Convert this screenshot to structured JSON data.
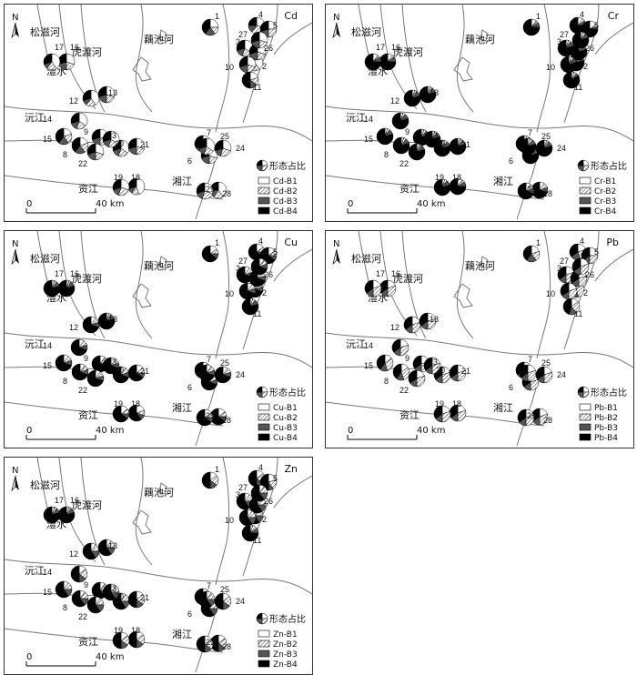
{
  "labels": {
    "songzi": "松滋河",
    "hudu": "虎渡河",
    "ouchi": "藕池河",
    "lishui": "澧水",
    "yuanjiang": "沅江",
    "zijiang": "资江",
    "xiangjiang": "湘江",
    "north": "N",
    "scale_zero": "0",
    "scale_dist": "40 km",
    "legend_title": "形态占比"
  },
  "colors": {
    "B1": "#ffffff",
    "B2": "hatched",
    "B3": "#555555",
    "B4": "#000000",
    "river": "#777777",
    "border": "#333333"
  },
  "site_ids": [
    "1",
    "2",
    "3",
    "4",
    "5",
    "6",
    "7",
    "8",
    "9",
    "10",
    "11",
    "12",
    "13",
    "14",
    "15",
    "16",
    "17",
    "18",
    "19",
    "20",
    "21",
    "22",
    "23",
    "24",
    "25",
    "26",
    "27",
    "28",
    "29"
  ],
  "panels": [
    {
      "metal": "Cd",
      "legend": [
        "Cd-B1",
        "Cd-B2",
        "Cd-B3",
        "Cd-B4"
      ],
      "fractions": {
        "1": [
          0.25,
          0.15,
          0.2,
          0.4
        ],
        "2": [
          0.4,
          0.2,
          0.15,
          0.25
        ],
        "3": [
          0.35,
          0.2,
          0.15,
          0.3
        ],
        "4": [
          0.3,
          0.3,
          0.15,
          0.25
        ],
        "5": [
          0.25,
          0.25,
          0.2,
          0.3
        ],
        "6": [
          0.3,
          0.2,
          0.2,
          0.3
        ],
        "7": [
          0.35,
          0.2,
          0.1,
          0.35
        ],
        "8": [
          0.2,
          0.2,
          0.2,
          0.4
        ],
        "9": [
          0.3,
          0.2,
          0.2,
          0.3
        ],
        "10": [
          0.3,
          0.2,
          0.2,
          0.3
        ],
        "11": [
          0.2,
          0.15,
          0.15,
          0.5
        ],
        "12": [
          0.4,
          0.2,
          0.1,
          0.3
        ],
        "13": [
          0.3,
          0.2,
          0.2,
          0.3
        ],
        "14": [
          0.35,
          0.2,
          0.15,
          0.3
        ],
        "15": [
          0.2,
          0.2,
          0.2,
          0.4
        ],
        "16": [
          0.3,
          0.2,
          0.2,
          0.3
        ],
        "17": [
          0.4,
          0.2,
          0.1,
          0.3
        ],
        "18": [
          0.45,
          0.15,
          0.1,
          0.3
        ],
        "19": [
          0.3,
          0.25,
          0.15,
          0.3
        ],
        "20": [
          0.35,
          0.2,
          0.15,
          0.3
        ],
        "21": [
          0.3,
          0.2,
          0.2,
          0.3
        ],
        "22": [
          0.3,
          0.2,
          0.2,
          0.3
        ],
        "23": [
          0.35,
          0.2,
          0.15,
          0.3
        ],
        "24": [
          0.3,
          0.25,
          0.15,
          0.3
        ],
        "25": [
          0.35,
          0.2,
          0.15,
          0.3
        ],
        "26": [
          0.3,
          0.2,
          0.2,
          0.3
        ],
        "27": [
          0.3,
          0.2,
          0.2,
          0.3
        ],
        "28": [
          0.4,
          0.2,
          0.15,
          0.25
        ],
        "29": [
          0.3,
          0.25,
          0.15,
          0.3
        ]
      }
    },
    {
      "metal": "Cr",
      "legend": [
        "Cr-B1",
        "Cr-B2",
        "Cr-B3",
        "Cr-B4"
      ],
      "fractions": {
        "1": [
          0.1,
          0.05,
          0.1,
          0.75
        ],
        "2": [
          0.05,
          0.05,
          0.1,
          0.8
        ],
        "3": [
          0.05,
          0.05,
          0.1,
          0.8
        ],
        "4": [
          0.1,
          0.05,
          0.1,
          0.75
        ],
        "5": [
          0.15,
          0.05,
          0.05,
          0.75
        ],
        "6": [
          0.05,
          0.05,
          0.1,
          0.8
        ],
        "7": [
          0.05,
          0.05,
          0.1,
          0.8
        ],
        "8": [
          0.05,
          0.05,
          0.1,
          0.8
        ],
        "9": [
          0.05,
          0.05,
          0.1,
          0.8
        ],
        "10": [
          0.05,
          0.05,
          0.1,
          0.8
        ],
        "11": [
          0.05,
          0.05,
          0.05,
          0.85
        ],
        "12": [
          0.05,
          0.05,
          0.1,
          0.8
        ],
        "13": [
          0.05,
          0.05,
          0.1,
          0.8
        ],
        "14": [
          0.05,
          0.05,
          0.1,
          0.8
        ],
        "15": [
          0.05,
          0.05,
          0.1,
          0.8
        ],
        "16": [
          0.1,
          0.05,
          0.1,
          0.75
        ],
        "17": [
          0.1,
          0.05,
          0.1,
          0.75
        ],
        "18": [
          0.1,
          0.05,
          0.1,
          0.75
        ],
        "19": [
          0.05,
          0.05,
          0.1,
          0.8
        ],
        "20": [
          0.05,
          0.05,
          0.1,
          0.8
        ],
        "21": [
          0.05,
          0.05,
          0.1,
          0.8
        ],
        "22": [
          0.05,
          0.05,
          0.1,
          0.8
        ],
        "23": [
          0.05,
          0.05,
          0.1,
          0.8
        ],
        "24": [
          0.05,
          0.05,
          0.1,
          0.8
        ],
        "25": [
          0.05,
          0.05,
          0.1,
          0.8
        ],
        "26": [
          0.05,
          0.05,
          0.1,
          0.8
        ],
        "27": [
          0.05,
          0.05,
          0.1,
          0.8
        ],
        "28": [
          0.1,
          0.1,
          0.1,
          0.7
        ],
        "29": [
          0.1,
          0.1,
          0.1,
          0.7
        ]
      }
    },
    {
      "metal": "Cu",
      "legend": [
        "Cu-B1",
        "Cu-B2",
        "Cu-B3",
        "Cu-B4"
      ],
      "fractions": {
        "1": [
          0.15,
          0.1,
          0.1,
          0.65
        ],
        "2": [
          0.1,
          0.1,
          0.1,
          0.7
        ],
        "3": [
          0.1,
          0.1,
          0.1,
          0.7
        ],
        "4": [
          0.15,
          0.1,
          0.1,
          0.65
        ],
        "5": [
          0.15,
          0.1,
          0.1,
          0.65
        ],
        "6": [
          0.1,
          0.1,
          0.1,
          0.7
        ],
        "7": [
          0.1,
          0.1,
          0.1,
          0.7
        ],
        "8": [
          0.1,
          0.1,
          0.1,
          0.7
        ],
        "9": [
          0.1,
          0.1,
          0.1,
          0.7
        ],
        "10": [
          0.1,
          0.1,
          0.1,
          0.7
        ],
        "11": [
          0.05,
          0.05,
          0.1,
          0.8
        ],
        "12": [
          0.1,
          0.1,
          0.1,
          0.7
        ],
        "13": [
          0.05,
          0.05,
          0.1,
          0.8
        ],
        "14": [
          0.1,
          0.1,
          0.1,
          0.7
        ],
        "15": [
          0.1,
          0.1,
          0.1,
          0.7
        ],
        "16": [
          0.05,
          0.05,
          0.1,
          0.8
        ],
        "17": [
          0.05,
          0.05,
          0.1,
          0.8
        ],
        "18": [
          0.2,
          0.1,
          0.1,
          0.6
        ],
        "19": [
          0.15,
          0.1,
          0.1,
          0.65
        ],
        "20": [
          0.1,
          0.1,
          0.1,
          0.7
        ],
        "21": [
          0.15,
          0.1,
          0.1,
          0.65
        ],
        "22": [
          0.1,
          0.1,
          0.1,
          0.7
        ],
        "23": [
          0.1,
          0.1,
          0.1,
          0.7
        ],
        "24": [
          0.1,
          0.1,
          0.1,
          0.7
        ],
        "25": [
          0.1,
          0.1,
          0.1,
          0.7
        ],
        "26": [
          0.1,
          0.1,
          0.1,
          0.7
        ],
        "27": [
          0.1,
          0.1,
          0.1,
          0.7
        ],
        "28": [
          0.15,
          0.1,
          0.1,
          0.65
        ],
        "29": [
          0.15,
          0.1,
          0.1,
          0.65
        ]
      }
    },
    {
      "metal": "Pb",
      "legend": [
        "Pb-B1",
        "Pb-B2",
        "Pb-B3",
        "Pb-B4"
      ],
      "fractions": {
        "1": [
          0.2,
          0.2,
          0.2,
          0.4
        ],
        "2": [
          0.15,
          0.3,
          0.2,
          0.35
        ],
        "3": [
          0.2,
          0.3,
          0.15,
          0.35
        ],
        "4": [
          0.2,
          0.25,
          0.2,
          0.35
        ],
        "5": [
          0.25,
          0.25,
          0.15,
          0.35
        ],
        "6": [
          0.2,
          0.3,
          0.15,
          0.35
        ],
        "7": [
          0.2,
          0.3,
          0.15,
          0.35
        ],
        "8": [
          0.15,
          0.3,
          0.15,
          0.4
        ],
        "9": [
          0.2,
          0.3,
          0.15,
          0.35
        ],
        "10": [
          0.2,
          0.3,
          0.15,
          0.35
        ],
        "11": [
          0.15,
          0.25,
          0.15,
          0.45
        ],
        "12": [
          0.2,
          0.3,
          0.15,
          0.35
        ],
        "13": [
          0.2,
          0.3,
          0.15,
          0.35
        ],
        "14": [
          0.2,
          0.3,
          0.15,
          0.35
        ],
        "15": [
          0.15,
          0.3,
          0.15,
          0.4
        ],
        "16": [
          0.2,
          0.3,
          0.15,
          0.35
        ],
        "17": [
          0.2,
          0.3,
          0.15,
          0.35
        ],
        "18": [
          0.2,
          0.3,
          0.15,
          0.35
        ],
        "19": [
          0.2,
          0.3,
          0.15,
          0.35
        ],
        "20": [
          0.2,
          0.3,
          0.15,
          0.35
        ],
        "21": [
          0.2,
          0.3,
          0.15,
          0.35
        ],
        "22": [
          0.2,
          0.3,
          0.15,
          0.35
        ],
        "23": [
          0.2,
          0.3,
          0.15,
          0.35
        ],
        "24": [
          0.2,
          0.3,
          0.15,
          0.35
        ],
        "25": [
          0.2,
          0.3,
          0.15,
          0.35
        ],
        "26": [
          0.2,
          0.3,
          0.15,
          0.35
        ],
        "27": [
          0.2,
          0.3,
          0.15,
          0.35
        ],
        "28": [
          0.2,
          0.3,
          0.15,
          0.35
        ],
        "29": [
          0.2,
          0.3,
          0.15,
          0.35
        ]
      }
    },
    {
      "metal": "Zn",
      "legend": [
        "Zn-B1",
        "Zn-B2",
        "Zn-B3",
        "Zn-B4"
      ],
      "fractions": {
        "1": [
          0.15,
          0.2,
          0.15,
          0.5
        ],
        "2": [
          0.1,
          0.15,
          0.15,
          0.6
        ],
        "3": [
          0.1,
          0.15,
          0.15,
          0.6
        ],
        "4": [
          0.15,
          0.2,
          0.15,
          0.5
        ],
        "5": [
          0.2,
          0.2,
          0.1,
          0.5
        ],
        "6": [
          0.1,
          0.15,
          0.15,
          0.6
        ],
        "7": [
          0.1,
          0.15,
          0.15,
          0.6
        ],
        "8": [
          0.1,
          0.15,
          0.15,
          0.6
        ],
        "9": [
          0.1,
          0.15,
          0.15,
          0.6
        ],
        "10": [
          0.1,
          0.15,
          0.15,
          0.6
        ],
        "11": [
          0.05,
          0.1,
          0.1,
          0.75
        ],
        "12": [
          0.1,
          0.15,
          0.15,
          0.6
        ],
        "13": [
          0.1,
          0.15,
          0.15,
          0.6
        ],
        "14": [
          0.15,
          0.2,
          0.15,
          0.5
        ],
        "15": [
          0.1,
          0.15,
          0.15,
          0.6
        ],
        "16": [
          0.05,
          0.05,
          0.1,
          0.8
        ],
        "17": [
          0.05,
          0.05,
          0.1,
          0.8
        ],
        "18": [
          0.15,
          0.2,
          0.15,
          0.5
        ],
        "19": [
          0.15,
          0.2,
          0.15,
          0.5
        ],
        "20": [
          0.1,
          0.15,
          0.15,
          0.6
        ],
        "21": [
          0.15,
          0.2,
          0.15,
          0.5
        ],
        "22": [
          0.1,
          0.15,
          0.15,
          0.6
        ],
        "23": [
          0.1,
          0.15,
          0.15,
          0.6
        ],
        "24": [
          0.15,
          0.2,
          0.15,
          0.5
        ],
        "25": [
          0.1,
          0.15,
          0.15,
          0.6
        ],
        "26": [
          0.1,
          0.15,
          0.15,
          0.6
        ],
        "27": [
          0.1,
          0.15,
          0.15,
          0.6
        ],
        "28": [
          0.15,
          0.2,
          0.15,
          0.5
        ],
        "29": [
          0.15,
          0.2,
          0.15,
          0.5
        ]
      }
    }
  ]
}
